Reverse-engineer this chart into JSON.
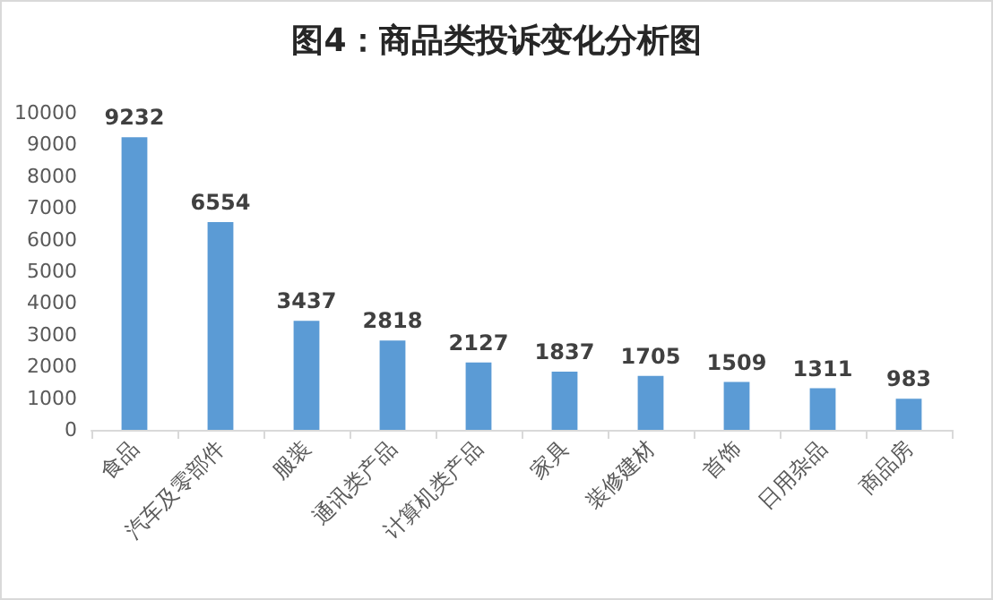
{
  "chart_data": {
    "type": "bar",
    "title": "图4：商品类投诉变化分析图",
    "categories": [
      "食品",
      "汽车及零部件",
      "服装",
      "通讯类产品",
      "计算机类产品",
      "家具",
      "装修建材",
      "首饰",
      "日用杂品",
      "商品房"
    ],
    "values": [
      9232,
      6554,
      3437,
      2818,
      2127,
      1837,
      1705,
      1509,
      1311,
      983
    ],
    "color": "#5b9bd5",
    "ylim": [
      0,
      10000
    ],
    "yticks": [
      0,
      1000,
      2000,
      3000,
      4000,
      5000,
      6000,
      7000,
      8000,
      9000,
      10000
    ],
    "grid": false,
    "data_labels": true
  }
}
